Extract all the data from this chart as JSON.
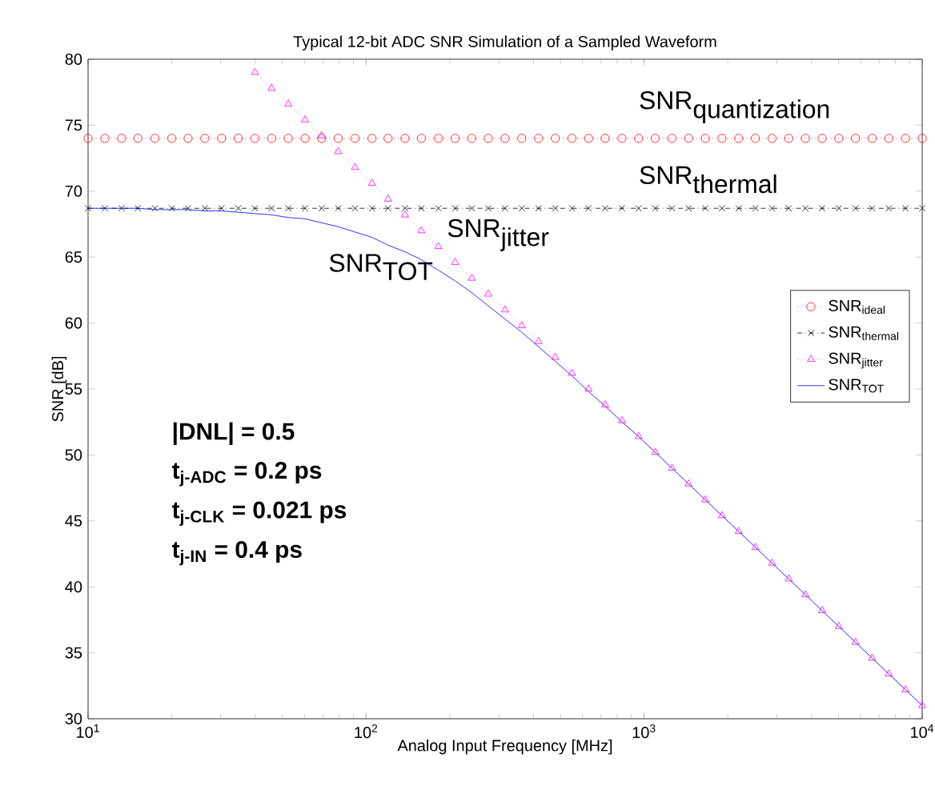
{
  "chart_data": {
    "type": "line",
    "title": "Typical 12-bit ADC SNR Simulation of a Sampled Waveform",
    "xlabel": "Analog Input Frequency [MHz]",
    "ylabel": "SNR [dB]",
    "log": "x",
    "xlim": [
      10,
      10000
    ],
    "ylim": [
      30,
      80
    ],
    "xticks": [
      {
        "value": 10,
        "label": "10$^{1}$"
      },
      {
        "value": 100,
        "label": "10$^{2}$"
      },
      {
        "value": 1000,
        "label": "10$^{3}$"
      },
      {
        "value": 10000,
        "label": "10$^{4}$"
      }
    ],
    "yticks": [
      30,
      35,
      40,
      45,
      50,
      55,
      60,
      65,
      70,
      75,
      80
    ],
    "legend": "top right",
    "grid": false,
    "x": [
      10,
      11.5,
      13.2,
      15.1,
      17.4,
      20.0,
      22.9,
      26.3,
      30.2,
      34.7,
      39.8,
      45.7,
      52.5,
      60.3,
      69.2,
      79.4,
      91.2,
      105,
      120,
      138,
      158,
      182,
      209,
      240,
      275,
      316,
      363,
      417,
      479,
      550,
      631,
      724,
      832,
      955,
      1096,
      1259,
      1445,
      1660,
      1905,
      2188,
      2512,
      2884,
      3311,
      3802,
      4365,
      5012,
      5754,
      6607,
      7586,
      8710,
      10000
    ],
    "series": [
      {
        "name": "SNR$_{ideal}$",
        "color": "#ff0000",
        "marker": "circle",
        "line_style": "dotted",
        "values": [
          74,
          74,
          74,
          74,
          74,
          74,
          74,
          74,
          74,
          74,
          74,
          74,
          74,
          74,
          74,
          74,
          74,
          74,
          74,
          74,
          74,
          74,
          74,
          74,
          74,
          74,
          74,
          74,
          74,
          74,
          74,
          74,
          74,
          74,
          74,
          74,
          74,
          74,
          74,
          74,
          74,
          74,
          74,
          74,
          74,
          74,
          74,
          74,
          74,
          74,
          74
        ]
      },
      {
        "name": "SNR$_{thermal}$",
        "color": "#000000",
        "marker": "cross",
        "line_style": "dashed",
        "values": [
          68.7,
          68.7,
          68.7,
          68.7,
          68.7,
          68.7,
          68.7,
          68.7,
          68.7,
          68.7,
          68.7,
          68.7,
          68.7,
          68.7,
          68.7,
          68.7,
          68.7,
          68.7,
          68.7,
          68.7,
          68.7,
          68.7,
          68.7,
          68.7,
          68.7,
          68.7,
          68.7,
          68.7,
          68.7,
          68.7,
          68.7,
          68.7,
          68.7,
          68.7,
          68.7,
          68.7,
          68.7,
          68.7,
          68.7,
          68.7,
          68.7,
          68.7,
          68.7,
          68.7,
          68.7,
          68.7,
          68.7,
          68.7,
          68.7,
          68.7,
          68.7
        ]
      },
      {
        "name": "SNR$_{jitter}$",
        "color": "#ff00ff",
        "marker": "triangle",
        "line_style": "dotted",
        "x": [
          39.8,
          45.7,
          52.5,
          60.3,
          69.2,
          79.4,
          91.2,
          105,
          120,
          138,
          158,
          182,
          209,
          240,
          275,
          316,
          363,
          417,
          479,
          550,
          631,
          724,
          832,
          955,
          1096,
          1259,
          1445,
          1660,
          1905,
          2188,
          2512,
          2884,
          3311,
          3802,
          4365,
          5012,
          5754,
          6607,
          7586,
          8710,
          10000
        ],
        "values": [
          79.0,
          77.8,
          76.6,
          75.4,
          74.2,
          73.0,
          71.8,
          70.6,
          69.4,
          68.2,
          67.0,
          65.8,
          64.6,
          63.4,
          62.2,
          61.0,
          59.8,
          58.6,
          57.4,
          56.2,
          55.0,
          53.8,
          52.6,
          51.4,
          50.2,
          49.0,
          47.8,
          46.6,
          45.4,
          44.2,
          43.0,
          41.8,
          40.6,
          39.4,
          38.2,
          37.0,
          35.8,
          34.6,
          33.4,
          32.2,
          31.0
        ]
      },
      {
        "name": "SNR$_{TOT}$",
        "color": "#0000ff",
        "marker": "none",
        "line_style": "solid",
        "values": [
          68.7,
          68.7,
          68.7,
          68.7,
          68.6,
          68.6,
          68.6,
          68.5,
          68.5,
          68.4,
          68.3,
          68.2,
          68.0,
          67.9,
          67.6,
          67.3,
          66.9,
          66.5,
          65.9,
          65.4,
          64.8,
          64.0,
          63.2,
          62.3,
          61.3,
          60.3,
          59.3,
          58.2,
          57.1,
          56.0,
          54.8,
          53.7,
          52.5,
          51.4,
          50.2,
          49.0,
          47.8,
          46.6,
          45.4,
          44.2,
          43.0,
          41.8,
          40.6,
          39.4,
          38.2,
          37.0,
          35.8,
          34.6,
          33.4,
          32.2,
          31.0
        ]
      }
    ],
    "annotations": [
      "\\textrm{SNR}_{\\textrm{quantization}}",
      "\\textrm{SNR}_{\\textrm{thermal}}",
      "\\textrm{SNR}_{\\textrm{jitter}}",
      "\\textrm{SNR}_{\\textrm{TOT}}",
      "|DNL| = 0.5",
      "t$_{j-ADC}$ = 0.2 ps",
      "t$_{j-CLK}$ = 0.021 ps",
      "t$_{j-IN}$ = 0.4 ps"
    ]
  }
}
